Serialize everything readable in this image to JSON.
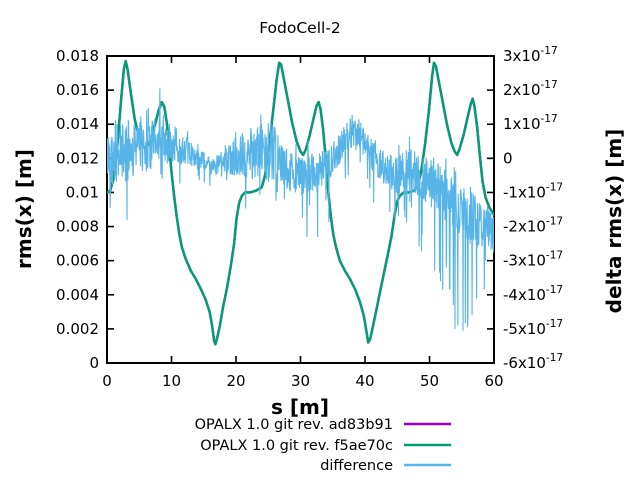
{
  "title": "FodoCell-2",
  "colors": {
    "text": "#000000",
    "border": "#000000",
    "background": "#ffffff"
  },
  "chart_data": {
    "type": "line",
    "title": "FodoCell-2",
    "xlabel": "s [m]",
    "ylabel_left": "rms(x) [m]",
    "ylabel_right": "delta rms(x) [m]",
    "grid": false,
    "legend_position": "below-plot-right",
    "xlim": [
      0,
      60
    ],
    "xticks": [
      0,
      10,
      20,
      30,
      40,
      50,
      60
    ],
    "ylim_left": [
      0,
      0.018
    ],
    "yticks_left": [
      "0",
      "0.002",
      "0.004",
      "0.006",
      "0.008",
      "0.01",
      "0.012",
      "0.014",
      "0.016",
      "0.018"
    ],
    "ylim_right_e17": [
      -6,
      3
    ],
    "yticks_right": [
      "3x10^-17",
      "2x10^-17",
      "1x10^-17",
      "0",
      "-1x10^-17",
      "-2x10^-17",
      "-3x10^-17",
      "-4x10^-17",
      "-5x10^-17",
      "-6x10^-17"
    ],
    "series": [
      {
        "name": "OPALX 1.0 git rev. ad83b91",
        "color": "#9400D3",
        "axis": "left",
        "points_key": "cell_curve",
        "note": "coincides exactly with f5ae70c curve, hidden beneath it"
      },
      {
        "name": "OPALX 1.0 git rev. f5ae70c",
        "color": "#009E73",
        "axis": "left",
        "points_key": "cell_curve"
      },
      {
        "name": "difference",
        "color": "#56B4E9",
        "axis": "right",
        "points_key": "difference_noise"
      }
    ],
    "cell_curve": [
      [
        0,
        0.01
      ],
      [
        0.5,
        0.0101
      ],
      [
        1.0,
        0.0108
      ],
      [
        1.6,
        0.0127
      ],
      [
        2.2,
        0.0155
      ],
      [
        2.6,
        0.0172
      ],
      [
        2.9,
        0.0177
      ],
      [
        3.2,
        0.0172
      ],
      [
        3.7,
        0.0158
      ],
      [
        4.3,
        0.0143
      ],
      [
        5.0,
        0.0132
      ],
      [
        5.6,
        0.0127
      ],
      [
        6.1,
        0.0126
      ],
      [
        6.7,
        0.013
      ],
      [
        7.4,
        0.0139
      ],
      [
        8.0,
        0.0148
      ],
      [
        8.5,
        0.0153
      ],
      [
        8.9,
        0.015
      ],
      [
        9.3,
        0.014
      ],
      [
        9.7,
        0.0124
      ],
      [
        10.0,
        0.0112
      ],
      [
        10.4,
        0.0098
      ],
      [
        10.8,
        0.0086
      ],
      [
        11.2,
        0.0076
      ],
      [
        11.6,
        0.0068
      ],
      [
        12.2,
        0.0061
      ],
      [
        13.0,
        0.0054
      ],
      [
        13.8,
        0.0049
      ],
      [
        14.6,
        0.0043
      ],
      [
        15.3,
        0.0037
      ],
      [
        15.9,
        0.003
      ],
      [
        16.3,
        0.0022
      ],
      [
        16.6,
        0.0013
      ],
      [
        16.8,
        0.0011
      ],
      [
        17.1,
        0.0015
      ],
      [
        17.5,
        0.0022
      ],
      [
        18.0,
        0.0033
      ],
      [
        18.6,
        0.0044
      ],
      [
        19.2,
        0.0057
      ],
      [
        19.7,
        0.007
      ],
      [
        20.1,
        0.0085
      ],
      [
        20.5,
        0.0094
      ],
      [
        20.9,
        0.0098
      ],
      [
        21.4,
        0.01
      ],
      [
        22.2,
        0.01
      ],
      [
        23.1,
        0.0101
      ],
      [
        24.0,
        0.0103
      ],
      [
        24.5,
        0.011
      ],
      [
        25.1,
        0.0126
      ],
      [
        25.7,
        0.0146
      ],
      [
        26.3,
        0.0166
      ],
      [
        26.7,
        0.0176
      ],
      [
        27.0,
        0.0175
      ],
      [
        27.4,
        0.0167
      ],
      [
        28.0,
        0.0155
      ],
      [
        28.7,
        0.0141
      ],
      [
        29.4,
        0.013
      ],
      [
        30.0,
        0.0124
      ],
      [
        30.4,
        0.0122
      ],
      [
        30.8,
        0.0125
      ],
      [
        31.4,
        0.0133
      ],
      [
        32.0,
        0.0143
      ],
      [
        32.5,
        0.0151
      ],
      [
        32.8,
        0.0153
      ],
      [
        33.1,
        0.0149
      ],
      [
        33.5,
        0.0137
      ],
      [
        33.9,
        0.012
      ],
      [
        34.3,
        0.0101
      ],
      [
        34.7,
        0.0086
      ],
      [
        35.1,
        0.0075
      ],
      [
        35.5,
        0.0068
      ],
      [
        36.1,
        0.006
      ],
      [
        36.9,
        0.0054
      ],
      [
        37.7,
        0.0049
      ],
      [
        38.5,
        0.0043
      ],
      [
        39.2,
        0.0036
      ],
      [
        39.8,
        0.0028
      ],
      [
        40.2,
        0.0019
      ],
      [
        40.5,
        0.0012
      ],
      [
        40.8,
        0.0014
      ],
      [
        41.2,
        0.0021
      ],
      [
        41.7,
        0.003
      ],
      [
        42.3,
        0.0041
      ],
      [
        42.9,
        0.0052
      ],
      [
        43.5,
        0.0063
      ],
      [
        44.1,
        0.0074
      ],
      [
        44.6,
        0.0087
      ],
      [
        45.0,
        0.0095
      ],
      [
        45.4,
        0.0098
      ],
      [
        46.0,
        0.01
      ],
      [
        46.8,
        0.01
      ],
      [
        47.6,
        0.0101
      ],
      [
        48.2,
        0.0104
      ],
      [
        48.7,
        0.0112
      ],
      [
        49.3,
        0.0128
      ],
      [
        49.9,
        0.0148
      ],
      [
        50.4,
        0.0168
      ],
      [
        50.7,
        0.0176
      ],
      [
        51.0,
        0.0174
      ],
      [
        51.4,
        0.0166
      ],
      [
        52.0,
        0.0154
      ],
      [
        52.7,
        0.014
      ],
      [
        53.4,
        0.0129
      ],
      [
        53.9,
        0.0124
      ],
      [
        54.3,
        0.0122
      ],
      [
        54.7,
        0.0126
      ],
      [
        55.3,
        0.0134
      ],
      [
        55.9,
        0.0144
      ],
      [
        56.4,
        0.0152
      ],
      [
        56.7,
        0.0155
      ],
      [
        57.0,
        0.015
      ],
      [
        57.4,
        0.0138
      ],
      [
        57.8,
        0.0122
      ],
      [
        58.2,
        0.0107
      ],
      [
        58.7,
        0.0097
      ],
      [
        59.3,
        0.0091
      ],
      [
        60,
        0.0087
      ]
    ],
    "difference_noise": {
      "units": "1e-17 m (right axis)",
      "description": "high-frequency numerical noise band, rendered from envelope keypoints with seeded RNG",
      "n_points": 1201,
      "seed": 42,
      "envelope": [
        {
          "s": 0,
          "mean": 0.05,
          "hw": 0.75,
          "up": 0.5,
          "dn": 1.2
        },
        {
          "s": 3,
          "mean": 0.2,
          "hw": 0.9,
          "up": 0.6,
          "dn": 1.6
        },
        {
          "s": 6,
          "mean": 0.4,
          "hw": 0.8,
          "up": 0.6,
          "dn": 1.3
        },
        {
          "s": 8.5,
          "mean": 0.45,
          "hw": 0.7,
          "up": 0.7,
          "dn": 1.3
        },
        {
          "s": 10,
          "mean": 0.45,
          "hw": 0.6,
          "up": 0.5,
          "dn": 1.4
        },
        {
          "s": 12,
          "mean": 0.25,
          "hw": 0.4,
          "up": 0.4,
          "dn": 0.8
        },
        {
          "s": 14,
          "mean": 0.0,
          "hw": 0.3,
          "up": 0.35,
          "dn": 0.5
        },
        {
          "s": 16.5,
          "mean": -0.25,
          "hw": 0.28,
          "up": 0.3,
          "dn": 0.45
        },
        {
          "s": 18.5,
          "mean": -0.05,
          "hw": 0.35,
          "up": 0.4,
          "dn": 0.6
        },
        {
          "s": 20.5,
          "mean": 0.1,
          "hw": 0.7,
          "up": 0.6,
          "dn": 1.0
        },
        {
          "s": 23,
          "mean": 0.15,
          "hw": 0.8,
          "up": 0.7,
          "dn": 1.5
        },
        {
          "s": 25.5,
          "mean": 0.2,
          "hw": 0.9,
          "up": 0.7,
          "dn": 1.2
        },
        {
          "s": 27.5,
          "mean": -0.3,
          "hw": 0.65,
          "up": 0.8,
          "dn": 1.3
        },
        {
          "s": 30,
          "mean": -0.5,
          "hw": 0.6,
          "up": 0.9,
          "dn": 1.5
        },
        {
          "s": 32.5,
          "mean": -0.45,
          "hw": 0.6,
          "up": 0.8,
          "dn": 1.7
        },
        {
          "s": 34.5,
          "mean": -0.2,
          "hw": 0.5,
          "up": 0.6,
          "dn": 1.4
        },
        {
          "s": 36.5,
          "mean": 0.45,
          "hw": 0.45,
          "up": 0.5,
          "dn": 1.0
        },
        {
          "s": 38.5,
          "mean": 0.8,
          "hw": 0.4,
          "up": 0.35,
          "dn": 0.7
        },
        {
          "s": 40,
          "mean": 0.45,
          "hw": 0.45,
          "up": 0.4,
          "dn": 0.8
        },
        {
          "s": 42,
          "mean": -0.15,
          "hw": 0.5,
          "up": 0.5,
          "dn": 0.9
        },
        {
          "s": 44.5,
          "mean": -0.5,
          "hw": 0.55,
          "up": 0.7,
          "dn": 1.0
        },
        {
          "s": 47,
          "mean": -0.35,
          "hw": 0.65,
          "up": 0.9,
          "dn": 1.2
        },
        {
          "s": 49.5,
          "mean": -0.6,
          "hw": 0.7,
          "up": 0.8,
          "dn": 2.0
        },
        {
          "s": 52,
          "mean": -1.0,
          "hw": 0.75,
          "up": 0.7,
          "dn": 2.6
        },
        {
          "s": 54.5,
          "mean": -1.5,
          "hw": 0.85,
          "up": 0.6,
          "dn": 3.4
        },
        {
          "s": 56.5,
          "mean": -1.8,
          "hw": 0.8,
          "up": 0.5,
          "dn": 3.0
        },
        {
          "s": 58,
          "mean": -1.95,
          "hw": 0.7,
          "up": 0.5,
          "dn": 1.6
        },
        {
          "s": 60,
          "mean": -2.1,
          "hw": 0.6,
          "up": 0.4,
          "dn": 0.9
        }
      ],
      "special_spikes": [
        {
          "s": 8.2,
          "d": 2.05
        },
        {
          "s": 50.8,
          "d": -3.3
        },
        {
          "s": 51.7,
          "d": -3.6
        },
        {
          "s": 52.6,
          "d": -3.2
        },
        {
          "s": 53.7,
          "d": -4.3
        },
        {
          "s": 54.4,
          "d": -4.9
        },
        {
          "s": 55.2,
          "d": -5.05
        },
        {
          "s": 55.9,
          "d": -4.95
        },
        {
          "s": 56.6,
          "d": -4.6
        },
        {
          "s": 57.3,
          "d": -4.1
        }
      ]
    }
  }
}
